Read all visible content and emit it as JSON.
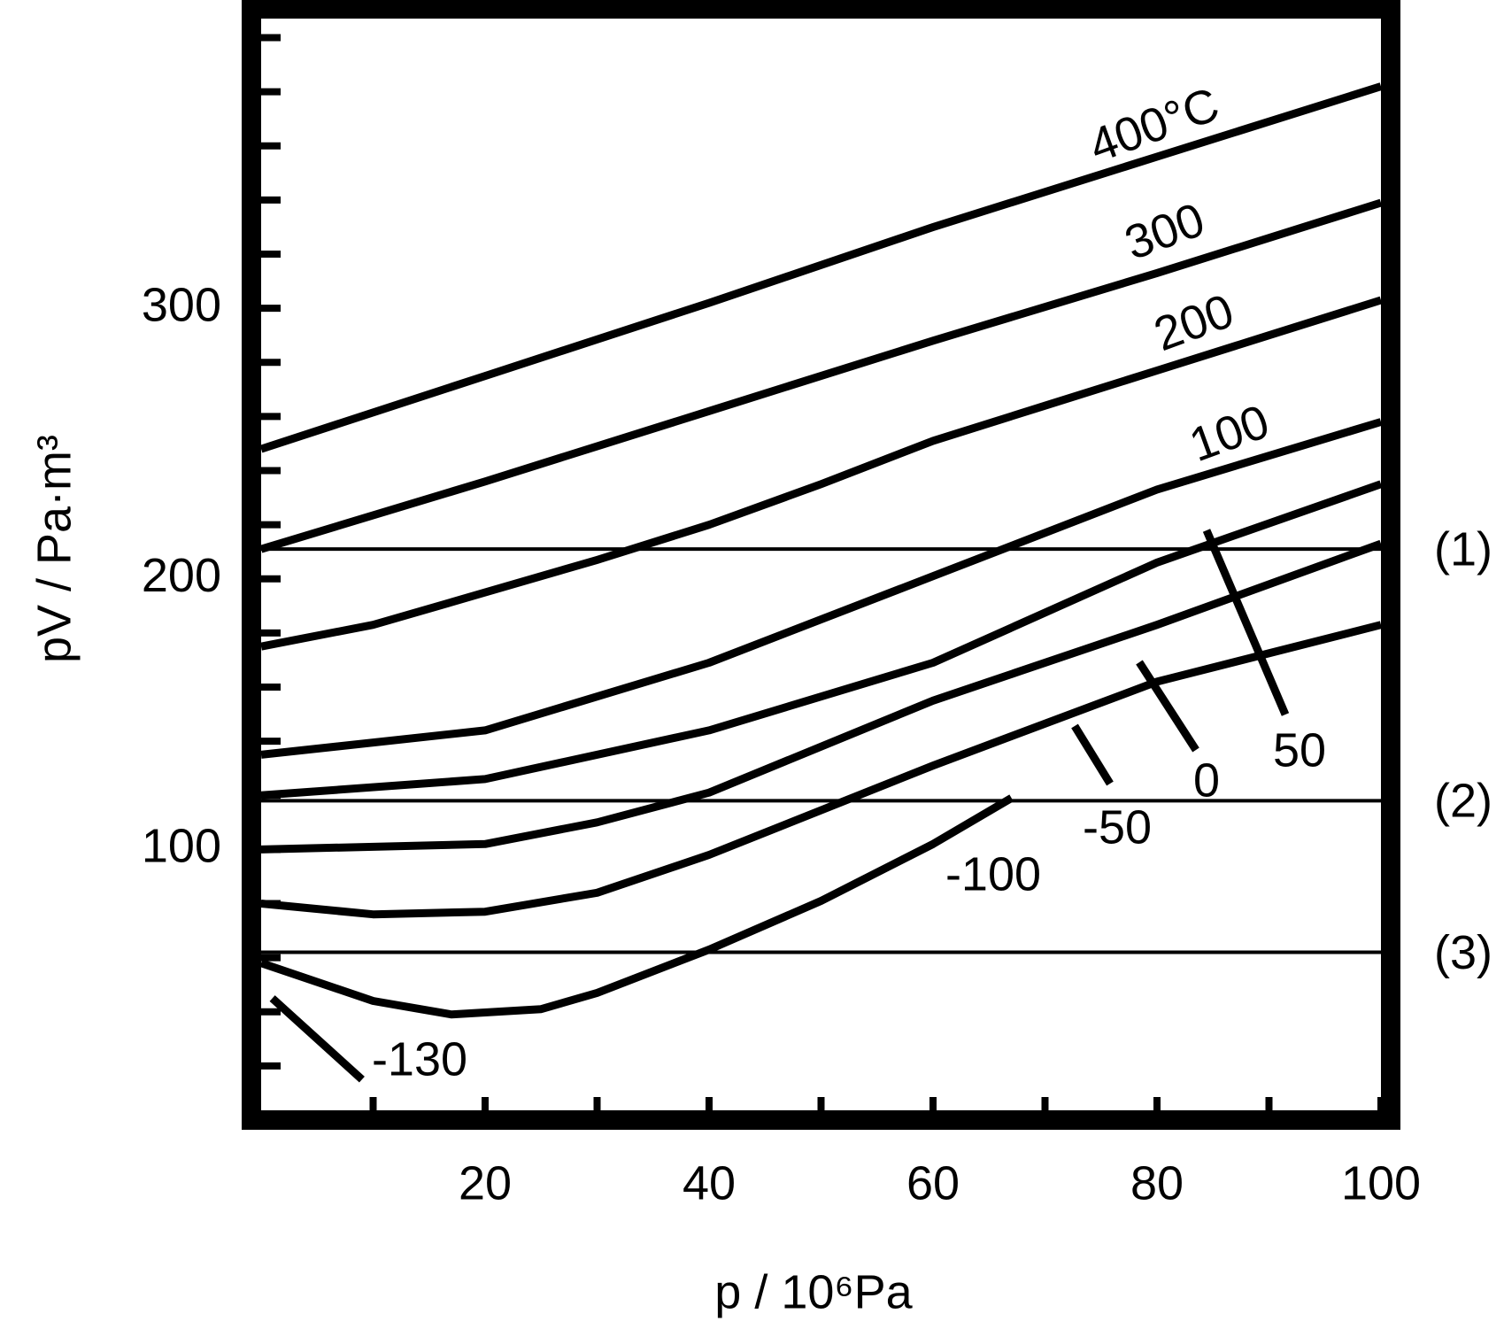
{
  "chart_data": {
    "type": "line",
    "xlabel": "p / 10⁶Pa",
    "ylabel": "pV / Pa·m³",
    "xlim": [
      0,
      100
    ],
    "ylim": [
      0,
      410
    ],
    "xticks": [
      20,
      40,
      60,
      80,
      100
    ],
    "xminorticks": [
      10,
      30,
      50,
      70,
      90
    ],
    "yticks": [
      100,
      200,
      300
    ],
    "yminorticks": [
      20,
      40,
      60,
      80,
      120,
      140,
      160,
      180,
      220,
      240,
      260,
      280,
      320,
      340,
      360,
      380,
      400
    ],
    "color": "#000000",
    "series": [
      {
        "name": "400°C",
        "x": [
          0,
          20,
          40,
          60,
          80,
          100
        ],
        "values": [
          248,
          275,
          302,
          330,
          356,
          382
        ]
      },
      {
        "name": "300",
        "x": [
          0,
          20,
          40,
          60,
          80,
          100
        ],
        "values": [
          211,
          236,
          262,
          288,
          313,
          339
        ]
      },
      {
        "name": "200",
        "x": [
          0,
          10,
          20,
          30,
          40,
          50,
          60,
          70,
          80,
          90,
          100
        ],
        "values": [
          175,
          183,
          195,
          207,
          220,
          235,
          251,
          264,
          277,
          290,
          303
        ]
      },
      {
        "name": "100",
        "x": [
          0,
          20,
          40,
          60,
          80,
          100
        ],
        "values": [
          135,
          144,
          169,
          201,
          233,
          258
        ]
      },
      {
        "name": "50",
        "x": [
          0,
          20,
          40,
          60,
          80,
          100
        ],
        "values": [
          120,
          126,
          144,
          169,
          206,
          235
        ]
      },
      {
        "name": "0",
        "x": [
          0,
          20,
          30,
          40,
          60,
          80,
          100
        ],
        "values": [
          100,
          102,
          110,
          121,
          155,
          183,
          213
        ]
      },
      {
        "name": "-50",
        "x": [
          0,
          10,
          20,
          30,
          40,
          60,
          80,
          100
        ],
        "values": [
          80,
          76,
          77,
          84,
          98,
          131,
          162,
          183
        ]
      },
      {
        "name": "-100",
        "x": [
          0,
          10,
          17,
          25,
          30,
          40,
          50,
          60,
          67
        ],
        "values": [
          58,
          44,
          39,
          41,
          47,
          63,
          81,
          102,
          119
        ]
      },
      {
        "name": "-130",
        "x": [
          1,
          9
        ],
        "values": [
          45,
          15
        ]
      }
    ],
    "hlines": [
      {
        "label": "(1)",
        "value": 211
      },
      {
        "label": "(2)",
        "value": 118
      },
      {
        "label": "(3)",
        "value": 62
      }
    ]
  }
}
